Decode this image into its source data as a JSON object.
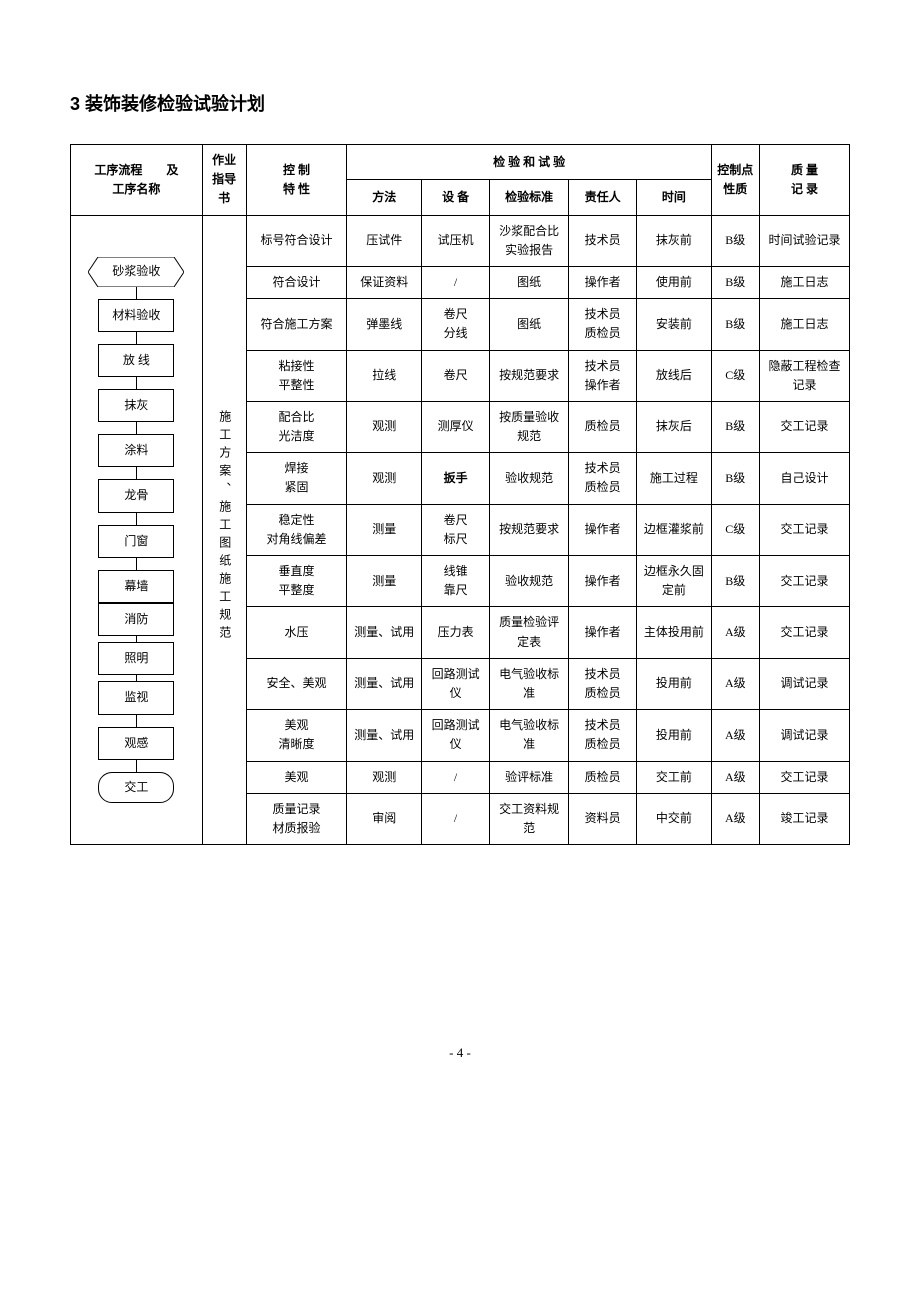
{
  "heading": "3 装饰装修检验试验计划",
  "header": {
    "col1_line1": "工序流程　　及",
    "col1_line2": "工序名称",
    "col2": "作业指导书",
    "col3": "控  制\n特  性",
    "group": "检  验  和  试  验",
    "g_method": "方法",
    "g_equip": "设  备",
    "g_std": "检验标准",
    "g_resp": "责任人",
    "g_time": "时间",
    "col9": "控制点性质",
    "col10": "质  量\n记  录"
  },
  "flow": {
    "n1": "砂浆验收",
    "n2": "材料验收",
    "n3": "放  线",
    "n4": "抹灰",
    "n5": "涂料",
    "n6": "龙骨",
    "n7": "门窗",
    "n8": "幕墙",
    "n9": "消防",
    "n10": "照明",
    "n11": "监视",
    "n12": "观感",
    "n13": "交工"
  },
  "guide": "施工方案、施工图纸施工规范",
  "rows": [
    {
      "c3": "标号符合设计",
      "c4": "压试件",
      "c5": "试压机",
      "c6": "沙浆配合比实验报告",
      "c7": "技术员",
      "c8": "抹灰前",
      "c9": "B级",
      "c10": "时间试验记录"
    },
    {
      "c3": "符合设计",
      "c4": "保证资料",
      "c5": "/",
      "c6": "图纸",
      "c7": "操作者",
      "c8": "使用前",
      "c9": "B级",
      "c10": "施工日志"
    },
    {
      "c3": "符合施工方案",
      "c4": "弹墨线",
      "c5": "卷尺\n分线",
      "c6": "图纸",
      "c7": "技术员\n质检员",
      "c8": "安装前",
      "c9": "B级",
      "c10": "施工日志"
    },
    {
      "c3": "粘接性\n平整性",
      "c4": "拉线",
      "c5": "卷尺",
      "c6": "按规范要求",
      "c7": "技术员\n操作者",
      "c8": "放线后",
      "c9": "C级",
      "c10": "隐蔽工程检查记录"
    },
    {
      "c3": "配合比\n光洁度",
      "c4": "观测",
      "c5": "测厚仪",
      "c6": "按质量验收规范",
      "c7": "质检员",
      "c8": "抹灰后",
      "c9": "B级",
      "c10": "交工记录"
    },
    {
      "c3": "焊接\n紧固",
      "c4": "观测",
      "c5": "扳手",
      "c5bold": true,
      "c6": "验收规范",
      "c7": "技术员\n质检员",
      "c8": "施工过程",
      "c9": "B级",
      "c10": "自己设计"
    },
    {
      "c3": "稳定性\n对角线偏差",
      "c4": "测量",
      "c5": "卷尺\n标尺",
      "c6": "按规范要求",
      "c7": "操作者",
      "c8": "边框灌浆前",
      "c9": "C级",
      "c10": "交工记录"
    },
    {
      "c3": "垂直度\n平整度",
      "c4": "测量",
      "c5": "线锥\n靠尺",
      "c6": "验收规范",
      "c7": "操作者",
      "c8": "边框永久固定前",
      "c9": "B级",
      "c10": "交工记录"
    },
    {
      "c3": "水压",
      "c4": "测量、试用",
      "c5": "压力表",
      "c6": "质量检验评定表",
      "c7": "操作者",
      "c8": "主体投用前",
      "c9": "A级",
      "c10": "交工记录"
    },
    {
      "c3": "安全、美观",
      "c4": "测量、试用",
      "c5": "回路测试仪",
      "c6": "电气验收标准",
      "c7": "技术员\n质检员",
      "c8": "投用前",
      "c9": "A级",
      "c10": "调试记录"
    },
    {
      "c3": "美观\n清晰度",
      "c4": "测量、试用",
      "c5": "回路测试仪",
      "c6": "电气验收标准",
      "c7": "技术员\n质检员",
      "c8": "投用前",
      "c9": "A级",
      "c10": "调试记录"
    },
    {
      "c3": "美观",
      "c4": "观测",
      "c5": "/",
      "c6": "验评标准",
      "c7": "质检员",
      "c8": "交工前",
      "c9": "A级",
      "c10": "交工记录"
    },
    {
      "c3": "质量记录\n材质报验",
      "c4": "审阅",
      "c5": "/",
      "c6": "交工资料规范",
      "c7": "资料员",
      "c8": "中交前",
      "c9": "A级",
      "c10": "竣工记录"
    }
  ],
  "footer": "- 4 -"
}
